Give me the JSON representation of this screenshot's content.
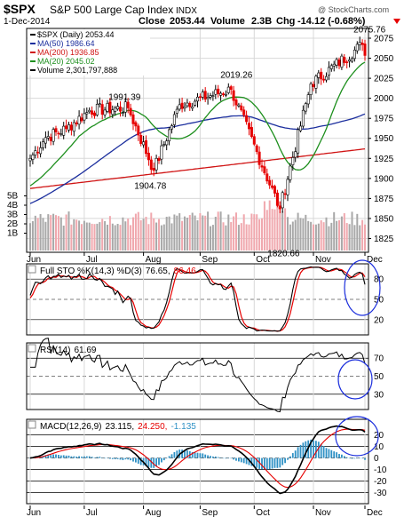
{
  "header": {
    "symbol": "$SPX",
    "name": "S&P 500 Large Cap Index",
    "exchange": "INDX",
    "date": "1-Dec-2014",
    "close_label": "Close",
    "close": "2053.44",
    "volume_label": "Volume",
    "volume": "2.3B",
    "chg_label": "Chg",
    "chg": "-14.12 (-0.68%)",
    "watermark": "@ StockCharts.com"
  },
  "colors": {
    "up": "#000000",
    "down": "#e60000",
    "ma50": "#1c2f9e",
    "ma200": "#d01414",
    "ma20": "#1d8f1d",
    "volume_up": "#a8a8a8",
    "volume_down": "#f0a8ae",
    "macd_hist": "#2f91c5",
    "annotation_circle": "#1a2ddc",
    "grid": "#d8d8d8",
    "panel_border": "#000000"
  },
  "legend_main": [
    {
      "text": "$SPX (Daily) 2053.44",
      "color": "#000000"
    },
    {
      "text": "MA(50) 1986.64",
      "color": "#1c2f9e"
    },
    {
      "text": "MA(200) 1936.85",
      "color": "#d01414"
    },
    {
      "text": "MA(20) 2045.02",
      "color": "#1d8f1d"
    },
    {
      "text": "Volume 2,301,797,888",
      "color": "#000000"
    }
  ],
  "annotations": [
    "2075.76",
    "2019.26",
    "1991.39",
    "1904.78",
    "1820.66"
  ],
  "x_axis_labels": [
    "Jun",
    "Jul",
    "Aug",
    "Sep",
    "Oct",
    "Nov",
    "Dec"
  ],
  "chart_data": [
    {
      "type": "candlestick",
      "title": "$SPX S&P 500 Large Cap Index INDX",
      "y_ticks": [
        1825,
        1850,
        1875,
        1900,
        1925,
        1950,
        1975,
        2000,
        2025,
        2050,
        2075
      ],
      "volume_ticks": [
        "1B",
        "2B",
        "3B",
        "4B",
        "5B"
      ],
      "ylim": [
        1810,
        2085
      ],
      "series": [
        {
          "name": "$SPX (Daily)",
          "key_points": [
            {
              "date": "2014-06-02",
              "close": 1925
            },
            {
              "date": "2014-06-10",
              "close": 1951
            },
            {
              "date": "2014-06-20",
              "close": 1962
            },
            {
              "date": "2014-07-03",
              "close": 1985
            },
            {
              "date": "2014-07-24",
              "close": 1988
            },
            {
              "date": "2014-08-07",
              "close": 1910
            },
            {
              "date": "2014-08-21",
              "close": 1992
            },
            {
              "date": "2014-09-18",
              "close": 2011
            },
            {
              "date": "2014-10-15",
              "close": 1862
            },
            {
              "date": "2014-10-31",
              "close": 2018
            },
            {
              "date": "2014-11-28",
              "close": 2067
            },
            {
              "date": "2014-12-01",
              "close": 2053.44
            }
          ]
        },
        {
          "name": "MA(50)",
          "last": 1986.64
        },
        {
          "name": "MA(200)",
          "last": 1936.85
        },
        {
          "name": "MA(20)",
          "last": 2045.02
        },
        {
          "name": "Volume",
          "last": 2301797888
        }
      ]
    },
    {
      "type": "line",
      "title": "Full STO %K(14,3) %D(3) 76.65, 86.46",
      "y_ticks": [
        20,
        50,
        80
      ],
      "ylim": [
        0,
        100
      ],
      "series": [
        {
          "name": "%K(14,3)",
          "last": 76.65
        },
        {
          "name": "%D(3)",
          "last": 86.46
        }
      ]
    },
    {
      "type": "line",
      "title": "RSI(14) 61.69",
      "y_ticks": [
        30,
        50,
        70
      ],
      "ylim": [
        15,
        85
      ],
      "series": [
        {
          "name": "RSI(14)",
          "last": 61.69
        }
      ]
    },
    {
      "type": "line",
      "title": "MACD(12,26,9) 23.115, 24.250, -1.135",
      "y_ticks": [
        -30,
        -20,
        -10,
        0,
        10,
        20
      ],
      "ylim": [
        -38,
        32
      ],
      "series": [
        {
          "name": "MACD",
          "last": 23.115
        },
        {
          "name": "Signal",
          "last": 24.25
        },
        {
          "name": "Histogram",
          "last": -1.135
        }
      ]
    }
  ],
  "titles": {
    "sto_prefix": "Full STO %K(14,3) %D(3)",
    "sto_k": "76.65,",
    "sto_d": "86.46",
    "rsi_prefix": "RSI(14)",
    "rsi_val": "61.69",
    "macd_prefix": "MACD(12,26,9)",
    "macd_val": "23.115,",
    "signal_val": "24.250,",
    "hist_val": "-1.135"
  }
}
